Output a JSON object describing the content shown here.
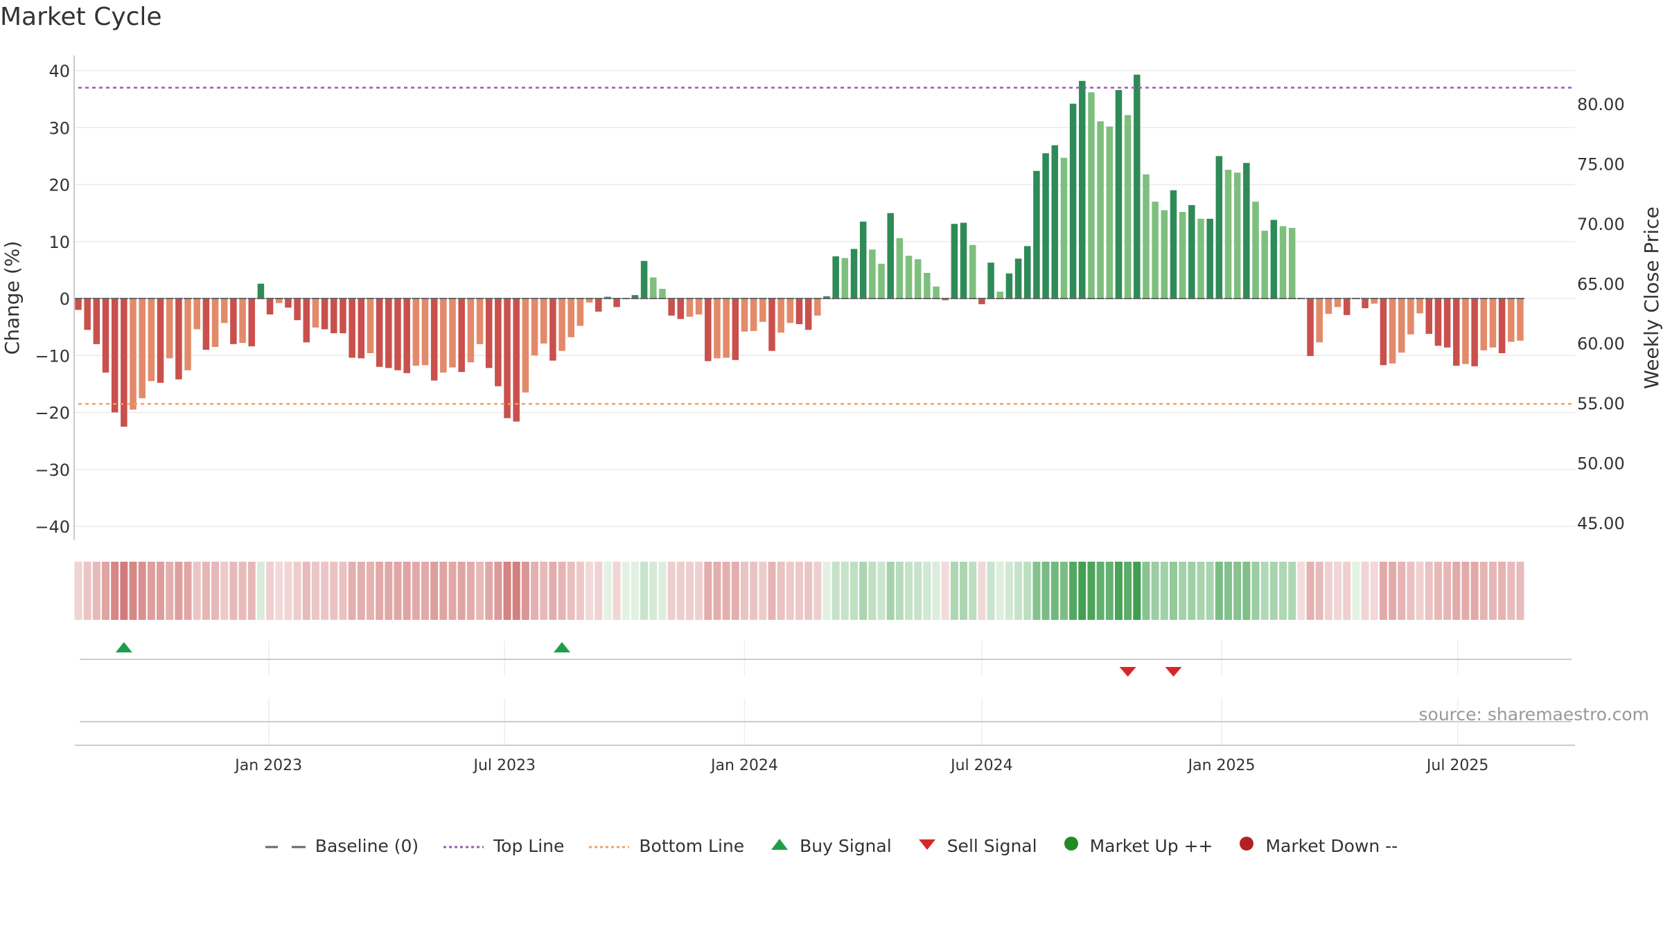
{
  "title": "Market Cycle",
  "source": "source: sharemaestro.com",
  "chart_data": {
    "type": "bar",
    "title": "Market Cycle",
    "ylabel_left": "Change (%)",
    "ylabel_right": "Weekly Close Price",
    "ylim_left": [
      -40,
      40
    ],
    "yticks_left": [
      40,
      30,
      20,
      10,
      0,
      -10,
      -20,
      -30,
      -40
    ],
    "ytick_labels_left": [
      "40",
      "30",
      "20",
      "10",
      "0",
      "−10",
      "−20",
      "−30",
      "−40"
    ],
    "ylim_right": [
      45,
      80
    ],
    "yticks_right": [
      80,
      75,
      70,
      65,
      60,
      55,
      50,
      45
    ],
    "ytick_labels_right": [
      "80.00",
      "75.00",
      "70.00",
      "65.00",
      "60.00",
      "55.00",
      "50.00",
      "45.00"
    ],
    "x_range": [
      "2022-08-08",
      "2025-09-29"
    ],
    "xtick_dates": [
      "2023-01-01",
      "2023-07-01",
      "2024-01-01",
      "2024-07-01",
      "2025-01-01",
      "2025-07-01"
    ],
    "xtick_labels": [
      "Jan 2023",
      "Jul 2023",
      "Jan 2024",
      "Jul 2024",
      "Jan 2025",
      "Jul 2025"
    ],
    "top_line": 37,
    "bottom_line": -18.5,
    "grid": true,
    "legend_position": "bottom",
    "colors": {
      "strong_down": "#c9504c",
      "weak_down": "#e38a6a",
      "strong_up": "#2e8b57",
      "weak_up": "#7ebf7e",
      "top_line": "#9b59b6",
      "bottom_line": "#f0a060",
      "buy": "#1e9e4a",
      "sell": "#d62728",
      "market_up": "#228b22",
      "market_down": "#b22222"
    },
    "series": [
      {
        "name": "Change (%)",
        "start_date": "2022-08-08",
        "interval_days": 7,
        "values": [
          -2,
          -5.5,
          -8,
          -13,
          -20,
          -22.5,
          -19.5,
          -17.5,
          -14.5,
          -14.8,
          -10.5,
          -14.2,
          -12.6,
          -5.4,
          -9,
          -8.5,
          -4.3,
          -8,
          -7.8,
          -8.4,
          2.6,
          -2.8,
          -0.8,
          -1.6,
          -3.8,
          -7.7,
          -5.1,
          -5.4,
          -6.1,
          -6.1,
          -10.4,
          -10.5,
          -9.6,
          -12,
          -12.2,
          -12.6,
          -13.1,
          -11.8,
          -11.7,
          -14.4,
          -13,
          -12.1,
          -12.9,
          -11.2,
          -8,
          -12.2,
          -15.4,
          -21,
          -21.6,
          -16.5,
          -10,
          -7.9,
          -10.9,
          -9.2,
          -6.8,
          -4.8,
          -0.7,
          -2.3,
          0.3,
          -1.5,
          0,
          0.6,
          6.6,
          3.7,
          1.7,
          -3,
          -3.6,
          -3.2,
          -2.8,
          -11,
          -10.5,
          -10.4,
          -10.8,
          -5.8,
          -5.7,
          -4.1,
          -9.2,
          -6,
          -4.3,
          -4.5,
          -5.5,
          -3,
          0.4,
          7.4,
          7.1,
          8.7,
          13.5,
          8.6,
          6.1,
          15,
          10.6,
          7.5,
          6.9,
          4.5,
          2.1,
          -0.3,
          13.1,
          13.3,
          9.4,
          -1,
          6.3,
          1.2,
          4.4,
          7,
          9.2,
          22.4,
          25.5,
          26.9,
          24.7,
          34.2,
          38.2,
          36.2,
          31.1,
          30.2,
          36.6,
          32.2,
          39.3,
          21.8,
          17,
          15.5,
          19,
          15.2,
          16.4,
          14,
          14,
          25,
          22.6,
          22.1,
          23.8,
          17,
          11.9,
          13.8,
          12.7,
          12.4,
          -0.1,
          -10.1,
          -7.7,
          -2.7,
          -1.5,
          -2.9,
          0,
          -1.7,
          -0.9,
          -11.7,
          -11.4,
          -9.5,
          -6.3,
          -2.6,
          -6.2,
          -8.3,
          -8.6,
          -11.8,
          -11.5,
          -11.9,
          -9.1,
          -8.6,
          -9.6,
          -7.6,
          -7.4
        ]
      }
    ],
    "buy_signals": [
      {
        "date": "2022-09-12",
        "label": "Buy Signal"
      },
      {
        "date": "2023-08-14",
        "label": "Buy Signal"
      }
    ],
    "sell_signals": [
      {
        "date": "2024-10-21",
        "label": "Sell Signal"
      },
      {
        "date": "2024-11-25",
        "label": "Sell Signal"
      }
    ],
    "legend": [
      {
        "type": "dash-gray",
        "label": "Baseline (0)"
      },
      {
        "type": "dot-purple",
        "label": "Top Line"
      },
      {
        "type": "dot-orange",
        "label": "Bottom Line"
      },
      {
        "type": "tri-up",
        "label": "Buy Signal"
      },
      {
        "type": "tri-down",
        "label": "Sell Signal"
      },
      {
        "type": "dot-green",
        "label": "Market Up ++"
      },
      {
        "type": "dot-red",
        "label": "Market Down --"
      }
    ]
  }
}
